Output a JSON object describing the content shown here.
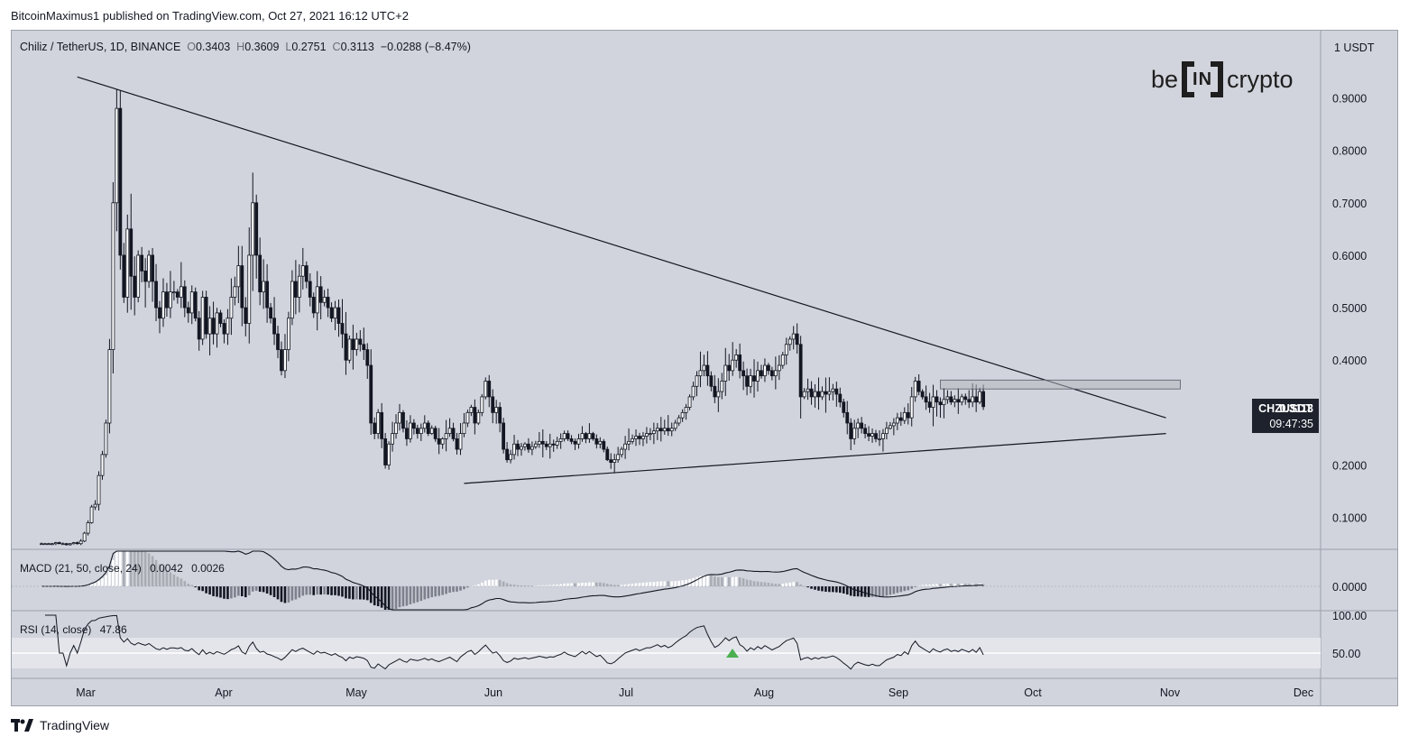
{
  "publisher_line": "BitcoinMaximus1 published on TradingView.com, Oct 27, 2021 16:12 UTC+2",
  "header": {
    "symbol": "Chiliz / TetherUS, 1D, BINANCE",
    "o_key": "O",
    "o": "0.3403",
    "h_key": "H",
    "h": "0.3609",
    "l_key": "L",
    "l": "0.2751",
    "c_key": "C",
    "c": "0.3113",
    "change": "−0.0288 (−8.47%)"
  },
  "brand": {
    "left": "be",
    "mid": "IN",
    "right": "crypto"
  },
  "price_tag": {
    "ticker": "CHZUSDT",
    "price": "0.3113",
    "countdown": "09:47:35"
  },
  "footer_text": "TradingView",
  "icons": {
    "tradingview": "tradingview-logo-icon",
    "signal": "triangle-up-icon"
  },
  "colors": {
    "background": "#d1d4dc",
    "candle": "#131722",
    "macd_up": "#ffffff",
    "macd_down": "#131722",
    "signal": "#4caf50"
  },
  "chart_data": [
    {
      "type": "candlestick",
      "symbol": "CHZUSDT",
      "y_unit": "1 USDT",
      "y_ticks": [
        "0.9000",
        "0.8000",
        "0.7000",
        "0.6000",
        "0.5000",
        "0.4000",
        "0.2000",
        "0.1000"
      ],
      "ylim": [
        0.04,
        1.0
      ],
      "x_ticks": [
        "Mar",
        "Apr",
        "May",
        "Jun",
        "Jul",
        "Aug",
        "Sep",
        "Oct",
        "Nov",
        "Dec"
      ],
      "last_price": 0.3113,
      "closes": [
        0.05,
        0.05,
        0.05,
        0.05,
        0.052,
        0.05,
        0.05,
        0.048,
        0.05,
        0.052,
        0.05,
        0.055,
        0.07,
        0.09,
        0.12,
        0.125,
        0.18,
        0.22,
        0.28,
        0.42,
        0.7,
        0.88,
        0.6,
        0.52,
        0.65,
        0.56,
        0.52,
        0.6,
        0.57,
        0.55,
        0.6,
        0.55,
        0.5,
        0.48,
        0.53,
        0.5,
        0.53,
        0.53,
        0.52,
        0.54,
        0.5,
        0.49,
        0.53,
        0.48,
        0.44,
        0.52,
        0.45,
        0.48,
        0.45,
        0.49,
        0.47,
        0.45,
        0.48,
        0.52,
        0.54,
        0.58,
        0.5,
        0.47,
        0.6,
        0.7,
        0.6,
        0.53,
        0.55,
        0.5,
        0.48,
        0.45,
        0.42,
        0.38,
        0.42,
        0.48,
        0.55,
        0.52,
        0.56,
        0.58,
        0.55,
        0.52,
        0.49,
        0.54,
        0.51,
        0.52,
        0.5,
        0.48,
        0.5,
        0.47,
        0.45,
        0.4,
        0.44,
        0.42,
        0.44,
        0.43,
        0.42,
        0.39,
        0.28,
        0.26,
        0.3,
        0.25,
        0.2,
        0.24,
        0.26,
        0.28,
        0.3,
        0.27,
        0.25,
        0.28,
        0.27,
        0.26,
        0.27,
        0.28,
        0.26,
        0.27,
        0.25,
        0.24,
        0.25,
        0.26,
        0.27,
        0.25,
        0.23,
        0.26,
        0.28,
        0.3,
        0.31,
        0.28,
        0.3,
        0.33,
        0.36,
        0.33,
        0.3,
        0.31,
        0.28,
        0.23,
        0.21,
        0.22,
        0.24,
        0.23,
        0.235,
        0.24,
        0.23,
        0.235,
        0.24,
        0.245,
        0.24,
        0.235,
        0.24,
        0.238,
        0.245,
        0.25,
        0.26,
        0.25,
        0.245,
        0.24,
        0.25,
        0.26,
        0.25,
        0.26,
        0.25,
        0.24,
        0.245,
        0.23,
        0.21,
        0.205,
        0.21,
        0.22,
        0.23,
        0.24,
        0.245,
        0.25,
        0.255,
        0.25,
        0.255,
        0.26,
        0.26,
        0.265,
        0.27,
        0.265,
        0.27,
        0.265,
        0.27,
        0.28,
        0.29,
        0.3,
        0.31,
        0.33,
        0.35,
        0.37,
        0.38,
        0.39,
        0.37,
        0.35,
        0.33,
        0.34,
        0.36,
        0.39,
        0.38,
        0.4,
        0.41,
        0.38,
        0.37,
        0.35,
        0.37,
        0.36,
        0.38,
        0.37,
        0.39,
        0.38,
        0.37,
        0.38,
        0.39,
        0.41,
        0.43,
        0.44,
        0.45,
        0.43,
        0.33,
        0.34,
        0.345,
        0.33,
        0.34,
        0.33,
        0.34,
        0.335,
        0.34,
        0.345,
        0.335,
        0.32,
        0.3,
        0.28,
        0.25,
        0.27,
        0.28,
        0.27,
        0.26,
        0.255,
        0.26,
        0.25,
        0.25,
        0.26,
        0.27,
        0.275,
        0.28,
        0.29,
        0.285,
        0.3,
        0.29,
        0.33,
        0.36,
        0.34,
        0.33,
        0.32,
        0.31,
        0.33,
        0.32,
        0.315,
        0.325,
        0.33,
        0.32,
        0.325,
        0.32,
        0.33,
        0.325,
        0.32,
        0.33,
        0.32,
        0.34,
        0.3113
      ],
      "annotations": [
        {
          "kind": "descending_trendline",
          "from": [
            10,
            0.94
          ],
          "to": [
            314,
            0.29
          ]
        },
        {
          "kind": "ascending_support",
          "from": [
            118,
            0.165
          ],
          "to": [
            314,
            0.26
          ]
        },
        {
          "kind": "resistance_zone",
          "x_from": 251,
          "x_to": 318,
          "y_from": 0.345,
          "y_to": 0.362
        }
      ]
    },
    {
      "type": "histogram",
      "name": "MACD (21, 50, close, 24)",
      "values_text": [
        "0.0042",
        "0.0026"
      ],
      "y_ticks": [
        "0.0000"
      ]
    },
    {
      "type": "line",
      "name": "RSI (14, close)",
      "value_text": "47.86",
      "y_ticks": [
        "100.00",
        "50.00"
      ]
    }
  ]
}
